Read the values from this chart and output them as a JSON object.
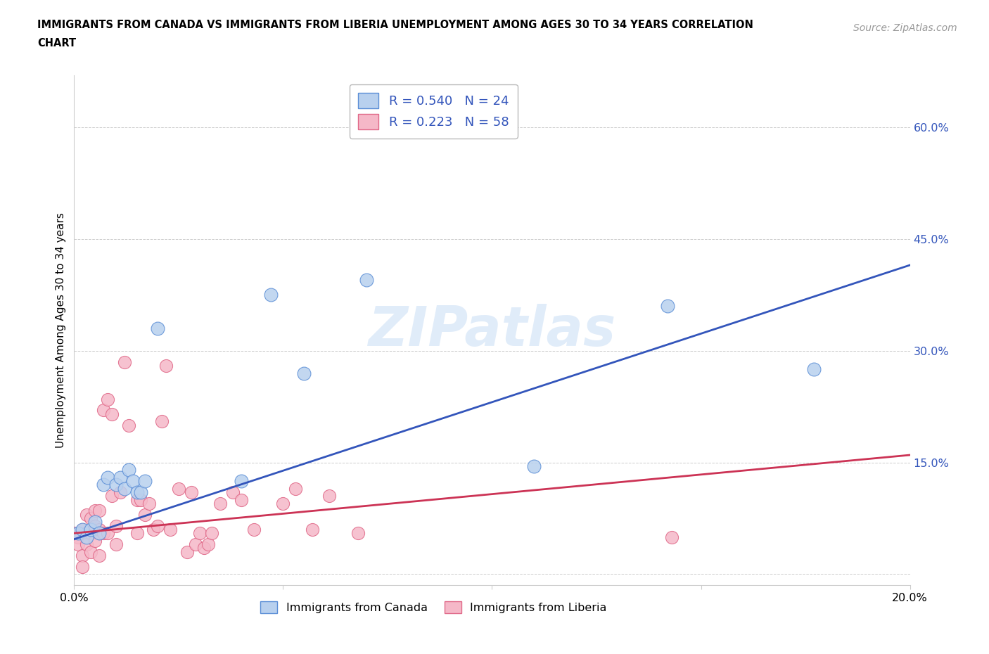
{
  "title_line1": "IMMIGRANTS FROM CANADA VS IMMIGRANTS FROM LIBERIA UNEMPLOYMENT AMONG AGES 30 TO 34 YEARS CORRELATION",
  "title_line2": "CHART",
  "source_text": "Source: ZipAtlas.com",
  "ylabel": "Unemployment Among Ages 30 to 34 years",
  "xlim": [
    0.0,
    0.2
  ],
  "ylim": [
    -0.015,
    0.67
  ],
  "xticks": [
    0.0,
    0.05,
    0.1,
    0.15,
    0.2
  ],
  "xticklabels": [
    "0.0%",
    "",
    "",
    "",
    "20.0%"
  ],
  "yticks_right": [
    0.0,
    0.15,
    0.3,
    0.45,
    0.6
  ],
  "yticklabels_right": [
    "",
    "15.0%",
    "30.0%",
    "45.0%",
    "60.0%"
  ],
  "canada_r": 0.54,
  "canada_n": 24,
  "liberia_r": 0.223,
  "liberia_n": 58,
  "canada_dot_color": "#b8d0ee",
  "canada_edge_color": "#5b8ed6",
  "liberia_dot_color": "#f5b8c8",
  "liberia_edge_color": "#e06888",
  "canada_line_color": "#3355bb",
  "liberia_line_color": "#cc3355",
  "legend_color": "#3355bb",
  "watermark_color": "#c8ddf5",
  "grid_color": "#cccccc",
  "canada_x": [
    0.001,
    0.002,
    0.003,
    0.004,
    0.005,
    0.006,
    0.007,
    0.008,
    0.01,
    0.011,
    0.012,
    0.013,
    0.014,
    0.015,
    0.016,
    0.017,
    0.02,
    0.04,
    0.047,
    0.055,
    0.07,
    0.11,
    0.142,
    0.177
  ],
  "canada_y": [
    0.055,
    0.06,
    0.05,
    0.06,
    0.07,
    0.055,
    0.12,
    0.13,
    0.12,
    0.13,
    0.115,
    0.14,
    0.125,
    0.11,
    0.11,
    0.125,
    0.33,
    0.125,
    0.375,
    0.27,
    0.395,
    0.145,
    0.36,
    0.275
  ],
  "liberia_x": [
    0.0,
    0.001,
    0.001,
    0.002,
    0.002,
    0.002,
    0.003,
    0.003,
    0.003,
    0.004,
    0.004,
    0.004,
    0.005,
    0.005,
    0.005,
    0.006,
    0.006,
    0.006,
    0.006,
    0.007,
    0.007,
    0.008,
    0.008,
    0.009,
    0.009,
    0.01,
    0.01,
    0.011,
    0.012,
    0.013,
    0.015,
    0.015,
    0.016,
    0.017,
    0.018,
    0.019,
    0.02,
    0.021,
    0.022,
    0.023,
    0.025,
    0.027,
    0.028,
    0.029,
    0.03,
    0.031,
    0.032,
    0.033,
    0.035,
    0.038,
    0.04,
    0.043,
    0.05,
    0.053,
    0.057,
    0.061,
    0.068,
    0.143
  ],
  "liberia_y": [
    0.055,
    0.05,
    0.04,
    0.06,
    0.025,
    0.01,
    0.055,
    0.08,
    0.04,
    0.03,
    0.055,
    0.075,
    0.045,
    0.065,
    0.085,
    0.025,
    0.055,
    0.06,
    0.085,
    0.055,
    0.22,
    0.055,
    0.235,
    0.215,
    0.105,
    0.065,
    0.04,
    0.11,
    0.285,
    0.2,
    0.055,
    0.1,
    0.1,
    0.08,
    0.095,
    0.06,
    0.065,
    0.205,
    0.28,
    0.06,
    0.115,
    0.03,
    0.11,
    0.04,
    0.055,
    0.035,
    0.04,
    0.055,
    0.095,
    0.11,
    0.1,
    0.06,
    0.095,
    0.115,
    0.06,
    0.105,
    0.055,
    0.05
  ],
  "canada_trend": [
    0.0,
    0.2,
    0.047,
    0.415
  ],
  "liberia_trend": [
    0.0,
    0.2,
    0.055,
    0.16
  ]
}
